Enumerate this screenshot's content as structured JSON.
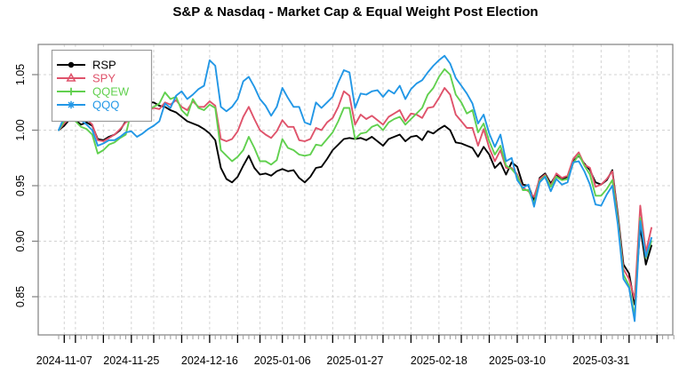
{
  "title": "S&P & Nasdaq - Market Cap & Equal Weight Post Election",
  "chart_data": {
    "type": "line",
    "title": "S&P & Nasdaq - Market Cap & Equal Weight Post Election",
    "grid": {
      "style": "dashed",
      "color": "#d3d3d3",
      "show": true
    },
    "box_color": "#808080",
    "y_axis": {
      "tick_values": [
        0.85,
        0.9,
        0.95,
        1.0,
        1.05
      ],
      "tick_labels": [
        "0.85",
        "0.90",
        "0.95",
        "1.00",
        "1.05"
      ],
      "range": [
        0.816,
        1.077
      ]
    },
    "x_axis": {
      "labeled_tick_dates": [
        "2024-11-07",
        "2024-11-25",
        "2024-12-16",
        "2025-01-06",
        "2025-01-27",
        "2025-02-18",
        "2025-03-10",
        "2025-03-31"
      ],
      "weekly_tick_dates": [
        "2024-11-07",
        "2024-11-11",
        "2024-11-18",
        "2024-11-25",
        "2024-12-02",
        "2024-12-09",
        "2024-12-16",
        "2024-12-23",
        "2024-12-30",
        "2025-01-06",
        "2025-01-13",
        "2025-01-21",
        "2025-01-27",
        "2025-02-03",
        "2025-02-10",
        "2025-02-18",
        "2025-02-24",
        "2025-03-03",
        "2025-03-10",
        "2025-03-17",
        "2025-03-24",
        "2025-03-31",
        "2025-04-07",
        "2025-04-14"
      ],
      "future_daily_ticks": [
        "2025-04-14",
        "2025-04-15",
        "2025-04-16",
        "2025-04-17"
      ]
    },
    "legend": {
      "position": "top-left",
      "entries": [
        {
          "label": "RSP",
          "color": "#000000",
          "marker": "filled-circle"
        },
        {
          "label": "SPY",
          "color": "#DF536B",
          "marker": "open-triangle"
        },
        {
          "label": "QQEW",
          "color": "#61D04F",
          "marker": "plus"
        },
        {
          "label": "QQQ",
          "color": "#2297E6",
          "marker": "asterisk"
        }
      ]
    },
    "dates": [
      "2024-11-06",
      "2024-11-07",
      "2024-11-08",
      "2024-11-11",
      "2024-11-12",
      "2024-11-13",
      "2024-11-14",
      "2024-11-15",
      "2024-11-18",
      "2024-11-19",
      "2024-11-20",
      "2024-11-21",
      "2024-11-22",
      "2024-11-25",
      "2024-11-26",
      "2024-11-27",
      "2024-11-29",
      "2024-12-02",
      "2024-12-03",
      "2024-12-04",
      "2024-12-05",
      "2024-12-06",
      "2024-12-09",
      "2024-12-10",
      "2024-12-11",
      "2024-12-12",
      "2024-12-13",
      "2024-12-16",
      "2024-12-17",
      "2024-12-18",
      "2024-12-19",
      "2024-12-20",
      "2024-12-23",
      "2024-12-24",
      "2024-12-26",
      "2024-12-27",
      "2024-12-30",
      "2024-12-31",
      "2025-01-02",
      "2025-01-03",
      "2025-01-06",
      "2025-01-07",
      "2025-01-08",
      "2025-01-10",
      "2025-01-13",
      "2025-01-14",
      "2025-01-15",
      "2025-01-16",
      "2025-01-17",
      "2025-01-21",
      "2025-01-22",
      "2025-01-23",
      "2025-01-24",
      "2025-01-27",
      "2025-01-28",
      "2025-01-29",
      "2025-01-30",
      "2025-01-31",
      "2025-02-03",
      "2025-02-04",
      "2025-02-05",
      "2025-02-06",
      "2025-02-07",
      "2025-02-10",
      "2025-02-11",
      "2025-02-12",
      "2025-02-13",
      "2025-02-14",
      "2025-02-18",
      "2025-02-19",
      "2025-02-20",
      "2025-02-21",
      "2025-02-24",
      "2025-02-25",
      "2025-02-26",
      "2025-02-27",
      "2025-02-28",
      "2025-03-03",
      "2025-03-04",
      "2025-03-05",
      "2025-03-06",
      "2025-03-07",
      "2025-03-10",
      "2025-03-11",
      "2025-03-12",
      "2025-03-13",
      "2025-03-14",
      "2025-03-17",
      "2025-03-18",
      "2025-03-19",
      "2025-03-20",
      "2025-03-21",
      "2025-03-24",
      "2025-03-25",
      "2025-03-26",
      "2025-03-27",
      "2025-03-28",
      "2025-03-31",
      "2025-04-01",
      "2025-04-02",
      "2025-04-03",
      "2025-04-04",
      "2025-04-07",
      "2025-04-08",
      "2025-04-09",
      "2025-04-10",
      "2025-04-11"
    ],
    "series": [
      {
        "name": "RSP",
        "color": "#000000",
        "values": [
          1.0,
          1.004,
          1.01,
          1.009,
          1.005,
          1.007,
          1.004,
          0.992,
          0.991,
          0.994,
          0.996,
          1.0,
          1.008,
          1.022,
          1.021,
          1.024,
          1.025,
          1.025,
          1.022,
          1.021,
          1.018,
          1.016,
          1.012,
          1.008,
          1.006,
          1.004,
          1.001,
          0.997,
          0.991,
          0.966,
          0.956,
          0.953,
          0.958,
          0.968,
          0.977,
          0.966,
          0.96,
          0.961,
          0.959,
          0.963,
          0.965,
          0.963,
          0.964,
          0.957,
          0.953,
          0.958,
          0.966,
          0.967,
          0.974,
          0.982,
          0.987,
          0.992,
          0.993,
          0.992,
          0.993,
          0.991,
          0.994,
          0.99,
          0.986,
          0.992,
          0.994,
          0.996,
          0.99,
          0.994,
          0.995,
          0.991,
          0.999,
          0.997,
          1.001,
          1.004,
          1.0,
          0.989,
          0.988,
          0.986,
          0.984,
          0.976,
          0.985,
          0.978,
          0.966,
          0.971,
          0.96,
          0.971,
          0.967,
          0.951,
          0.95,
          0.936,
          0.957,
          0.961,
          0.952,
          0.96,
          0.956,
          0.958,
          0.972,
          0.977,
          0.97,
          0.964,
          0.953,
          0.951,
          0.955,
          0.964,
          0.924,
          0.879,
          0.871,
          0.843,
          0.913,
          0.879,
          0.896
        ]
      },
      {
        "name": "SPY",
        "color": "#DF536B",
        "values": [
          1.0,
          1.006,
          1.011,
          1.013,
          1.01,
          1.01,
          1.005,
          0.991,
          0.99,
          0.993,
          0.996,
          1.001,
          1.007,
          1.01,
          1.016,
          1.012,
          1.018,
          1.02,
          1.019,
          1.025,
          1.023,
          1.027,
          1.021,
          1.018,
          1.026,
          1.021,
          1.021,
          1.026,
          1.022,
          0.992,
          0.99,
          0.992,
          0.999,
          1.012,
          1.021,
          1.01,
          1.0,
          0.996,
          0.993,
          0.999,
          1.009,
          1.003,
          1.003,
          0.991,
          0.99,
          0.992,
          1.002,
          1.0,
          1.007,
          1.011,
          1.021,
          1.035,
          1.031,
          1.005,
          1.014,
          1.01,
          1.013,
          1.009,
          1.005,
          1.012,
          1.015,
          1.018,
          1.008,
          1.015,
          1.014,
          1.011,
          1.02,
          1.021,
          1.029,
          1.038,
          1.032,
          1.014,
          1.008,
          1.002,
          1.002,
          0.986,
          1.001,
          0.984,
          0.972,
          0.982,
          0.966,
          0.966,
          0.96,
          0.948,
          0.945,
          0.94,
          0.956,
          0.96,
          0.95,
          0.961,
          0.957,
          0.959,
          0.974,
          0.98,
          0.969,
          0.966,
          0.949,
          0.951,
          0.956,
          0.963,
          0.921,
          0.875,
          0.866,
          0.848,
          0.932,
          0.89,
          0.912
        ]
      },
      {
        "name": "QQEW",
        "color": "#61D04F",
        "values": [
          1.0,
          1.008,
          1.013,
          1.008,
          1.003,
          1.001,
          0.996,
          0.979,
          0.982,
          0.987,
          0.989,
          0.993,
          0.996,
          1.017,
          1.015,
          1.014,
          1.019,
          1.021,
          1.024,
          1.034,
          1.028,
          1.03,
          1.018,
          1.013,
          1.028,
          1.02,
          1.018,
          1.023,
          1.02,
          0.982,
          0.977,
          0.972,
          0.976,
          0.982,
          0.994,
          0.984,
          0.972,
          0.972,
          0.969,
          0.973,
          0.992,
          0.984,
          0.982,
          0.978,
          0.977,
          0.978,
          0.987,
          0.986,
          0.992,
          0.998,
          1.008,
          1.02,
          1.02,
          0.992,
          0.997,
          0.998,
          1.003,
          1.005,
          1.0,
          1.007,
          1.01,
          1.012,
          1.005,
          1.01,
          1.015,
          1.02,
          1.032,
          1.038,
          1.048,
          1.055,
          1.05,
          1.032,
          1.025,
          1.015,
          1.018,
          0.998,
          1.006,
          0.99,
          0.978,
          0.986,
          0.968,
          0.965,
          0.959,
          0.946,
          0.946,
          0.934,
          0.954,
          0.959,
          0.949,
          0.958,
          0.955,
          0.956,
          0.97,
          0.978,
          0.968,
          0.96,
          0.941,
          0.941,
          0.947,
          0.955,
          0.918,
          0.87,
          0.86,
          0.832,
          0.921,
          0.885,
          0.9
        ]
      },
      {
        "name": "QQQ",
        "color": "#2297E6",
        "values": [
          1.0,
          1.012,
          1.014,
          1.012,
          1.009,
          1.005,
          1.0,
          0.986,
          0.988,
          0.991,
          0.991,
          0.994,
          0.998,
          0.999,
          0.994,
          0.997,
          1.001,
          1.004,
          1.008,
          1.024,
          1.02,
          1.031,
          1.035,
          1.028,
          1.032,
          1.037,
          1.04,
          1.063,
          1.058,
          1.021,
          1.017,
          1.021,
          1.028,
          1.044,
          1.048,
          1.039,
          1.028,
          1.022,
          1.013,
          1.021,
          1.038,
          1.029,
          1.021,
          1.021,
          1.007,
          1.005,
          1.025,
          1.02,
          1.025,
          1.03,
          1.043,
          1.054,
          1.052,
          1.02,
          1.033,
          1.032,
          1.035,
          1.036,
          1.03,
          1.036,
          1.033,
          1.04,
          1.028,
          1.037,
          1.042,
          1.045,
          1.052,
          1.058,
          1.063,
          1.067,
          1.06,
          1.047,
          1.04,
          1.033,
          1.024,
          1.006,
          1.014,
          0.997,
          0.985,
          0.996,
          0.972,
          0.975,
          0.955,
          0.948,
          0.951,
          0.931,
          0.953,
          0.958,
          0.945,
          0.956,
          0.951,
          0.953,
          0.971,
          0.972,
          0.963,
          0.951,
          0.933,
          0.932,
          0.942,
          0.95,
          0.915,
          0.866,
          0.858,
          0.828,
          0.918,
          0.886,
          0.903
        ]
      }
    ]
  }
}
